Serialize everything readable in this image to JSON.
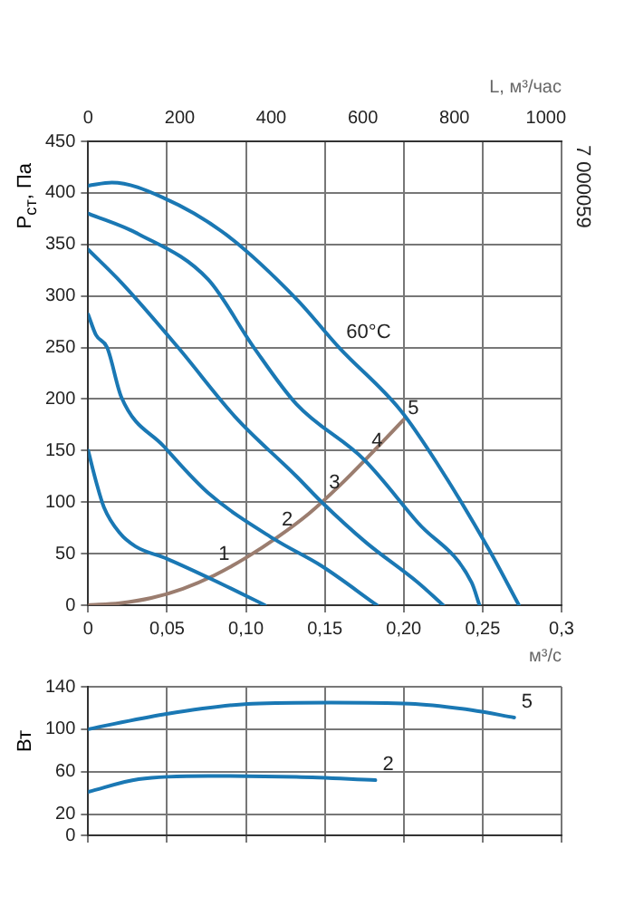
{
  "chart_data": [
    {
      "type": "line",
      "ylabel": "P$_{ст}$, Па",
      "xlabel": "м³/с",
      "x2label": "L, м³/час",
      "xlim": [
        0,
        0.3
      ],
      "xticks": [
        0,
        {
          "value": 0.05,
          "label": "0,05"
        },
        {
          "value": 0.1,
          "label": "0,10"
        },
        {
          "value": 0.15,
          "label": "0,15"
        },
        {
          "value": 0.2,
          "label": "0,20"
        },
        {
          "value": 0.25,
          "label": "0,25"
        },
        {
          "value": 0.3,
          "label": "0,3"
        }
      ],
      "x2lim": [
        0,
        1034
      ],
      "x2ticks": [
        0,
        200,
        400,
        600,
        800,
        1000
      ],
      "ylim": [
        0,
        450
      ],
      "yticks": [
        0,
        50,
        100,
        150,
        200,
        250,
        300,
        350,
        400,
        450
      ],
      "grid": true,
      "legend": false,
      "marker": "none",
      "line_style": "solid",
      "series": [
        {
          "color": "#1a78b4",
          "x": [
            0,
            0.005,
            0.01,
            0.02,
            0.03,
            0.05,
            0.08,
            0.112
          ],
          "values": [
            150,
            120,
            95,
            70,
            57,
            45,
            24,
            0
          ]
        },
        {
          "color": "#1a78b4",
          "x": [
            0,
            0.005,
            0.012,
            0.021,
            0.048,
            0.076,
            0.118,
            0.148,
            0.183
          ],
          "values": [
            282,
            262,
            250,
            202,
            154,
            109,
            64,
            38,
            0
          ]
        },
        {
          "color": "#1a78b4",
          "x": [
            0,
            0.021,
            0.057,
            0.093,
            0.132,
            0.148,
            0.176,
            0.209,
            0.225
          ],
          "values": [
            345,
            313,
            250,
            183,
            125,
            100,
            61,
            22,
            0
          ]
        },
        {
          "color": "#1a78b4",
          "x": [
            0,
            0.032,
            0.076,
            0.105,
            0.132,
            0.175,
            0.209,
            0.243,
            0.248
          ],
          "values": [
            380,
            360,
            316,
            250,
            195,
            141,
            80,
            22,
            0
          ]
        },
        {
          "color": "#1a78b4",
          "x": [
            0,
            0.015,
            0.048,
            0.087,
            0.132,
            0.159,
            0.198,
            0.221,
            0.254,
            0.273
          ],
          "values": [
            407,
            410,
            395,
            360,
            297,
            250,
            189,
            138,
            54,
            0
          ]
        },
        {
          "color": "#9b7d6f",
          "x": [
            0,
            0.02,
            0.04,
            0.06,
            0.08,
            0.1,
            0.12,
            0.14,
            0.16,
            0.18,
            0.2
          ],
          "values": [
            0,
            2,
            7,
            16,
            29,
            46,
            66,
            89,
            117,
            148,
            180
          ]
        }
      ],
      "annotations": [
        {
          "text": "1",
          "x": 0.078,
          "y": 34
        },
        {
          "text": "2",
          "x": 0.118,
          "y": 68
        },
        {
          "text": "3",
          "x": 0.148,
          "y": 104
        },
        {
          "text": "4",
          "x": 0.175,
          "y": 144
        },
        {
          "text": "5",
          "x": 0.198,
          "y": 176
        },
        {
          "text": "60°C",
          "x": 0.159,
          "y": 250
        },
        "7 000059"
      ]
    },
    {
      "type": "line",
      "ylabel": "Вт",
      "xlim": [
        0,
        0.3
      ],
      "xticks": [
        {
          "value": 0,
          "label": null
        },
        {
          "value": 0.05,
          "label": null
        },
        {
          "value": 0.1,
          "label": null
        },
        {
          "value": 0.15,
          "label": null
        },
        {
          "value": 0.2,
          "label": null
        },
        {
          "value": 0.25,
          "label": null
        },
        {
          "value": 0.3,
          "label": null
        }
      ],
      "ylim": [
        0,
        140
      ],
      "yticks": [
        0,
        20,
        60,
        100,
        140
      ],
      "tick_labels": "y",
      "grid": true,
      "legend": false,
      "marker": "none",
      "line_style": "solid",
      "series": [
        {
          "color": "#1a78b4",
          "x": [
            0,
            0.048,
            0.104,
            0.154,
            0.204,
            0.243,
            0.27
          ],
          "values": [
            100,
            114,
            124,
            125,
            124,
            118,
            111
          ]
        },
        {
          "color": "#1a78b4",
          "x": [
            0,
            0.032,
            0.076,
            0.132,
            0.182
          ],
          "values": [
            41,
            53,
            56,
            55,
            52
          ]
        }
      ],
      "annotations": [
        {
          "text": "5",
          "x": 0.27,
          "y": 111
        },
        {
          "text": "2",
          "x": 0.182,
          "y": 52
        }
      ]
    }
  ]
}
